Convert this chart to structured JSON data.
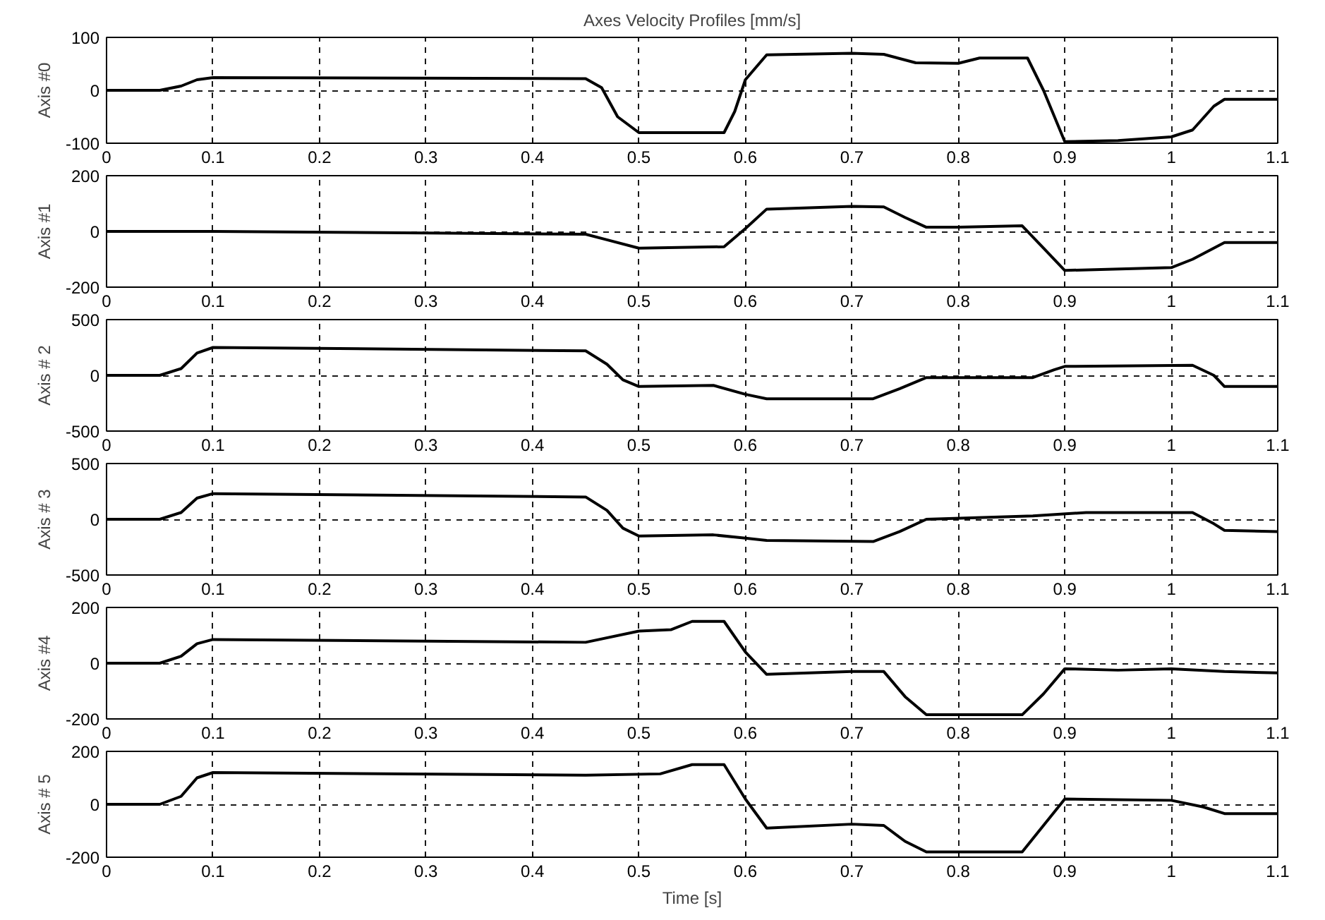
{
  "chart_data": [
    {
      "type": "line",
      "title": "Axes Velocity Profiles [mm/s]",
      "ylabel": "Axis #0",
      "xlim": [
        0,
        1.1
      ],
      "xticks": [
        0,
        0.1,
        0.2,
        0.3,
        0.4,
        0.5,
        0.6,
        0.7,
        0.8,
        0.9,
        1,
        1.1
      ],
      "ylim": [
        -100,
        100
      ],
      "yticks": [
        -100,
        0,
        100
      ],
      "grid": true,
      "series": [
        {
          "color": "#000000",
          "x": [
            0,
            0.05,
            0.07,
            0.085,
            0.1,
            0.45,
            0.465,
            0.48,
            0.5,
            0.58,
            0.59,
            0.6,
            0.62,
            0.7,
            0.73,
            0.76,
            0.8,
            0.82,
            0.865,
            0.88,
            0.9,
            0.95,
            1.0,
            1.02,
            1.04,
            1.05,
            1.1
          ],
          "values": [
            0,
            0,
            8,
            20,
            24,
            22,
            5,
            -50,
            -80,
            -80,
            -40,
            20,
            67,
            70,
            68,
            52,
            51,
            61,
            61,
            0,
            -97,
            -95,
            -88,
            -75,
            -30,
            -17,
            -17
          ]
        }
      ]
    },
    {
      "type": "line",
      "ylabel": "Axis #1",
      "xlim": [
        0,
        1.1
      ],
      "xticks": [
        0,
        0.1,
        0.2,
        0.3,
        0.4,
        0.5,
        0.6,
        0.7,
        0.8,
        0.9,
        1,
        1.1
      ],
      "ylim": [
        -200,
        200
      ],
      "yticks": [
        -200,
        0,
        200
      ],
      "grid": true,
      "series": [
        {
          "color": "#000000",
          "x": [
            0,
            0.1,
            0.45,
            0.47,
            0.5,
            0.58,
            0.6,
            0.62,
            0.7,
            0.73,
            0.75,
            0.77,
            0.8,
            0.86,
            0.88,
            0.9,
            1.0,
            1.02,
            1.05,
            1.1
          ],
          "values": [
            0,
            0,
            -10,
            -30,
            -60,
            -55,
            10,
            80,
            90,
            88,
            50,
            15,
            15,
            20,
            -60,
            -140,
            -130,
            -100,
            -40,
            -40
          ]
        }
      ]
    },
    {
      "type": "line",
      "ylabel": "Axis # 2",
      "xlim": [
        0,
        1.1
      ],
      "xticks": [
        0,
        0.1,
        0.2,
        0.3,
        0.4,
        0.5,
        0.6,
        0.7,
        0.8,
        0.9,
        1,
        1.1
      ],
      "ylim": [
        -500,
        500
      ],
      "yticks": [
        -500,
        0,
        500
      ],
      "grid": true,
      "series": [
        {
          "color": "#000000",
          "x": [
            0,
            0.05,
            0.07,
            0.085,
            0.1,
            0.45,
            0.47,
            0.485,
            0.5,
            0.57,
            0.6,
            0.62,
            0.72,
            0.745,
            0.77,
            0.87,
            0.89,
            0.9,
            1.02,
            1.04,
            1.05,
            1.1
          ],
          "values": [
            0,
            0,
            60,
            200,
            250,
            220,
            100,
            -40,
            -100,
            -90,
            -170,
            -210,
            -210,
            -120,
            -20,
            -20,
            50,
            80,
            90,
            0,
            -100,
            -100
          ]
        }
      ]
    },
    {
      "type": "line",
      "ylabel": "Axis # 3",
      "xlim": [
        0,
        1.1
      ],
      "xticks": [
        0,
        0.1,
        0.2,
        0.3,
        0.4,
        0.5,
        0.6,
        0.7,
        0.8,
        0.9,
        1,
        1.1
      ],
      "ylim": [
        -500,
        500
      ],
      "yticks": [
        -500,
        0,
        500
      ],
      "grid": true,
      "series": [
        {
          "color": "#000000",
          "x": [
            0,
            0.05,
            0.07,
            0.085,
            0.1,
            0.45,
            0.47,
            0.485,
            0.5,
            0.57,
            0.6,
            0.62,
            0.72,
            0.745,
            0.77,
            0.87,
            0.92,
            1.02,
            1.04,
            1.05,
            1.1
          ],
          "values": [
            0,
            0,
            60,
            190,
            230,
            200,
            80,
            -80,
            -150,
            -140,
            -170,
            -190,
            -200,
            -110,
            0,
            30,
            60,
            60,
            -40,
            -100,
            -110
          ]
        }
      ]
    },
    {
      "type": "line",
      "ylabel": "Axis #4",
      "xlim": [
        0,
        1.1
      ],
      "xticks": [
        0,
        0.1,
        0.2,
        0.3,
        0.4,
        0.5,
        0.6,
        0.7,
        0.8,
        0.9,
        1,
        1.1
      ],
      "ylim": [
        -200,
        200
      ],
      "yticks": [
        -200,
        0,
        200
      ],
      "grid": true,
      "series": [
        {
          "color": "#000000",
          "x": [
            0,
            0.05,
            0.07,
            0.085,
            0.1,
            0.45,
            0.5,
            0.53,
            0.55,
            0.58,
            0.6,
            0.62,
            0.7,
            0.73,
            0.75,
            0.77,
            0.86,
            0.88,
            0.9,
            0.95,
            1.0,
            1.05,
            1.1
          ],
          "values": [
            0,
            0,
            25,
            70,
            85,
            75,
            115,
            120,
            150,
            150,
            40,
            -40,
            -30,
            -30,
            -120,
            -185,
            -185,
            -110,
            -20,
            -25,
            -20,
            -30,
            -35
          ]
        }
      ]
    },
    {
      "type": "line",
      "ylabel": "Axis # 5",
      "xlabel": "Time [s]",
      "xlim": [
        0,
        1.1
      ],
      "xticks": [
        0,
        0.1,
        0.2,
        0.3,
        0.4,
        0.5,
        0.6,
        0.7,
        0.8,
        0.9,
        1,
        1.1
      ],
      "ylim": [
        -200,
        200
      ],
      "yticks": [
        -200,
        0,
        200
      ],
      "grid": true,
      "series": [
        {
          "color": "#000000",
          "x": [
            0,
            0.05,
            0.07,
            0.085,
            0.1,
            0.45,
            0.52,
            0.55,
            0.58,
            0.6,
            0.62,
            0.7,
            0.73,
            0.75,
            0.77,
            0.86,
            0.88,
            0.9,
            1.0,
            1.03,
            1.05,
            1.1
          ],
          "values": [
            0,
            0,
            30,
            100,
            120,
            110,
            115,
            150,
            150,
            20,
            -90,
            -75,
            -80,
            -140,
            -180,
            -180,
            -80,
            20,
            15,
            -10,
            -35,
            -35
          ]
        }
      ]
    }
  ]
}
